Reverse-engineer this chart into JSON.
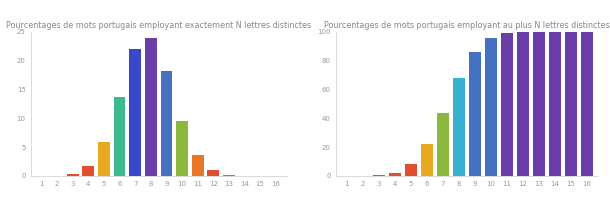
{
  "title1": "Pourcentages de mots portugais employant exactement N lettres distinctes",
  "title2": "Pourcentages de mots portugais employant au plus N lettres distinctes",
  "categories": [
    1,
    2,
    3,
    4,
    5,
    6,
    7,
    8,
    9,
    10,
    11,
    12,
    13,
    14,
    15,
    16
  ],
  "values1": [
    0.05,
    0.05,
    0.35,
    1.75,
    5.9,
    13.8,
    22.0,
    24.0,
    18.2,
    9.6,
    3.6,
    1.0,
    0.2,
    0.05,
    0.02,
    0.01
  ],
  "values2": [
    0.05,
    0.1,
    0.45,
    2.2,
    8.1,
    21.9,
    43.9,
    67.9,
    86.1,
    95.7,
    99.3,
    100.0,
    100.0,
    100.0,
    100.0,
    100.0
  ],
  "colors1": [
    "#e05030",
    "#e05030",
    "#e05030",
    "#e05030",
    "#e8a820",
    "#3dba8e",
    "#3848c8",
    "#6a3da8",
    "#4472c0",
    "#8db840",
    "#e87828",
    "#e05030",
    "#c86878",
    "#e05030",
    "#e05030",
    "#e05030"
  ],
  "colors2": [
    "#e05030",
    "#e05030",
    "#e05030",
    "#e05030",
    "#e05030",
    "#e8a820",
    "#8db840",
    "#38b0d0",
    "#4472c0",
    "#4472c0",
    "#6a3da8",
    "#6a3da8",
    "#6a3da8",
    "#6a3da8",
    "#6a3da8",
    "#6a3da8"
  ],
  "bg_color": "#ffffff",
  "title_color": "#888888",
  "title_fontsize": 5.8,
  "tick_fontsize": 5.0,
  "ylim1": [
    0,
    25
  ],
  "ylim2": [
    0,
    100
  ],
  "yticks1": [
    0,
    5,
    10,
    15,
    20,
    25
  ],
  "yticks2": [
    0,
    20,
    40,
    60,
    80,
    100
  ]
}
